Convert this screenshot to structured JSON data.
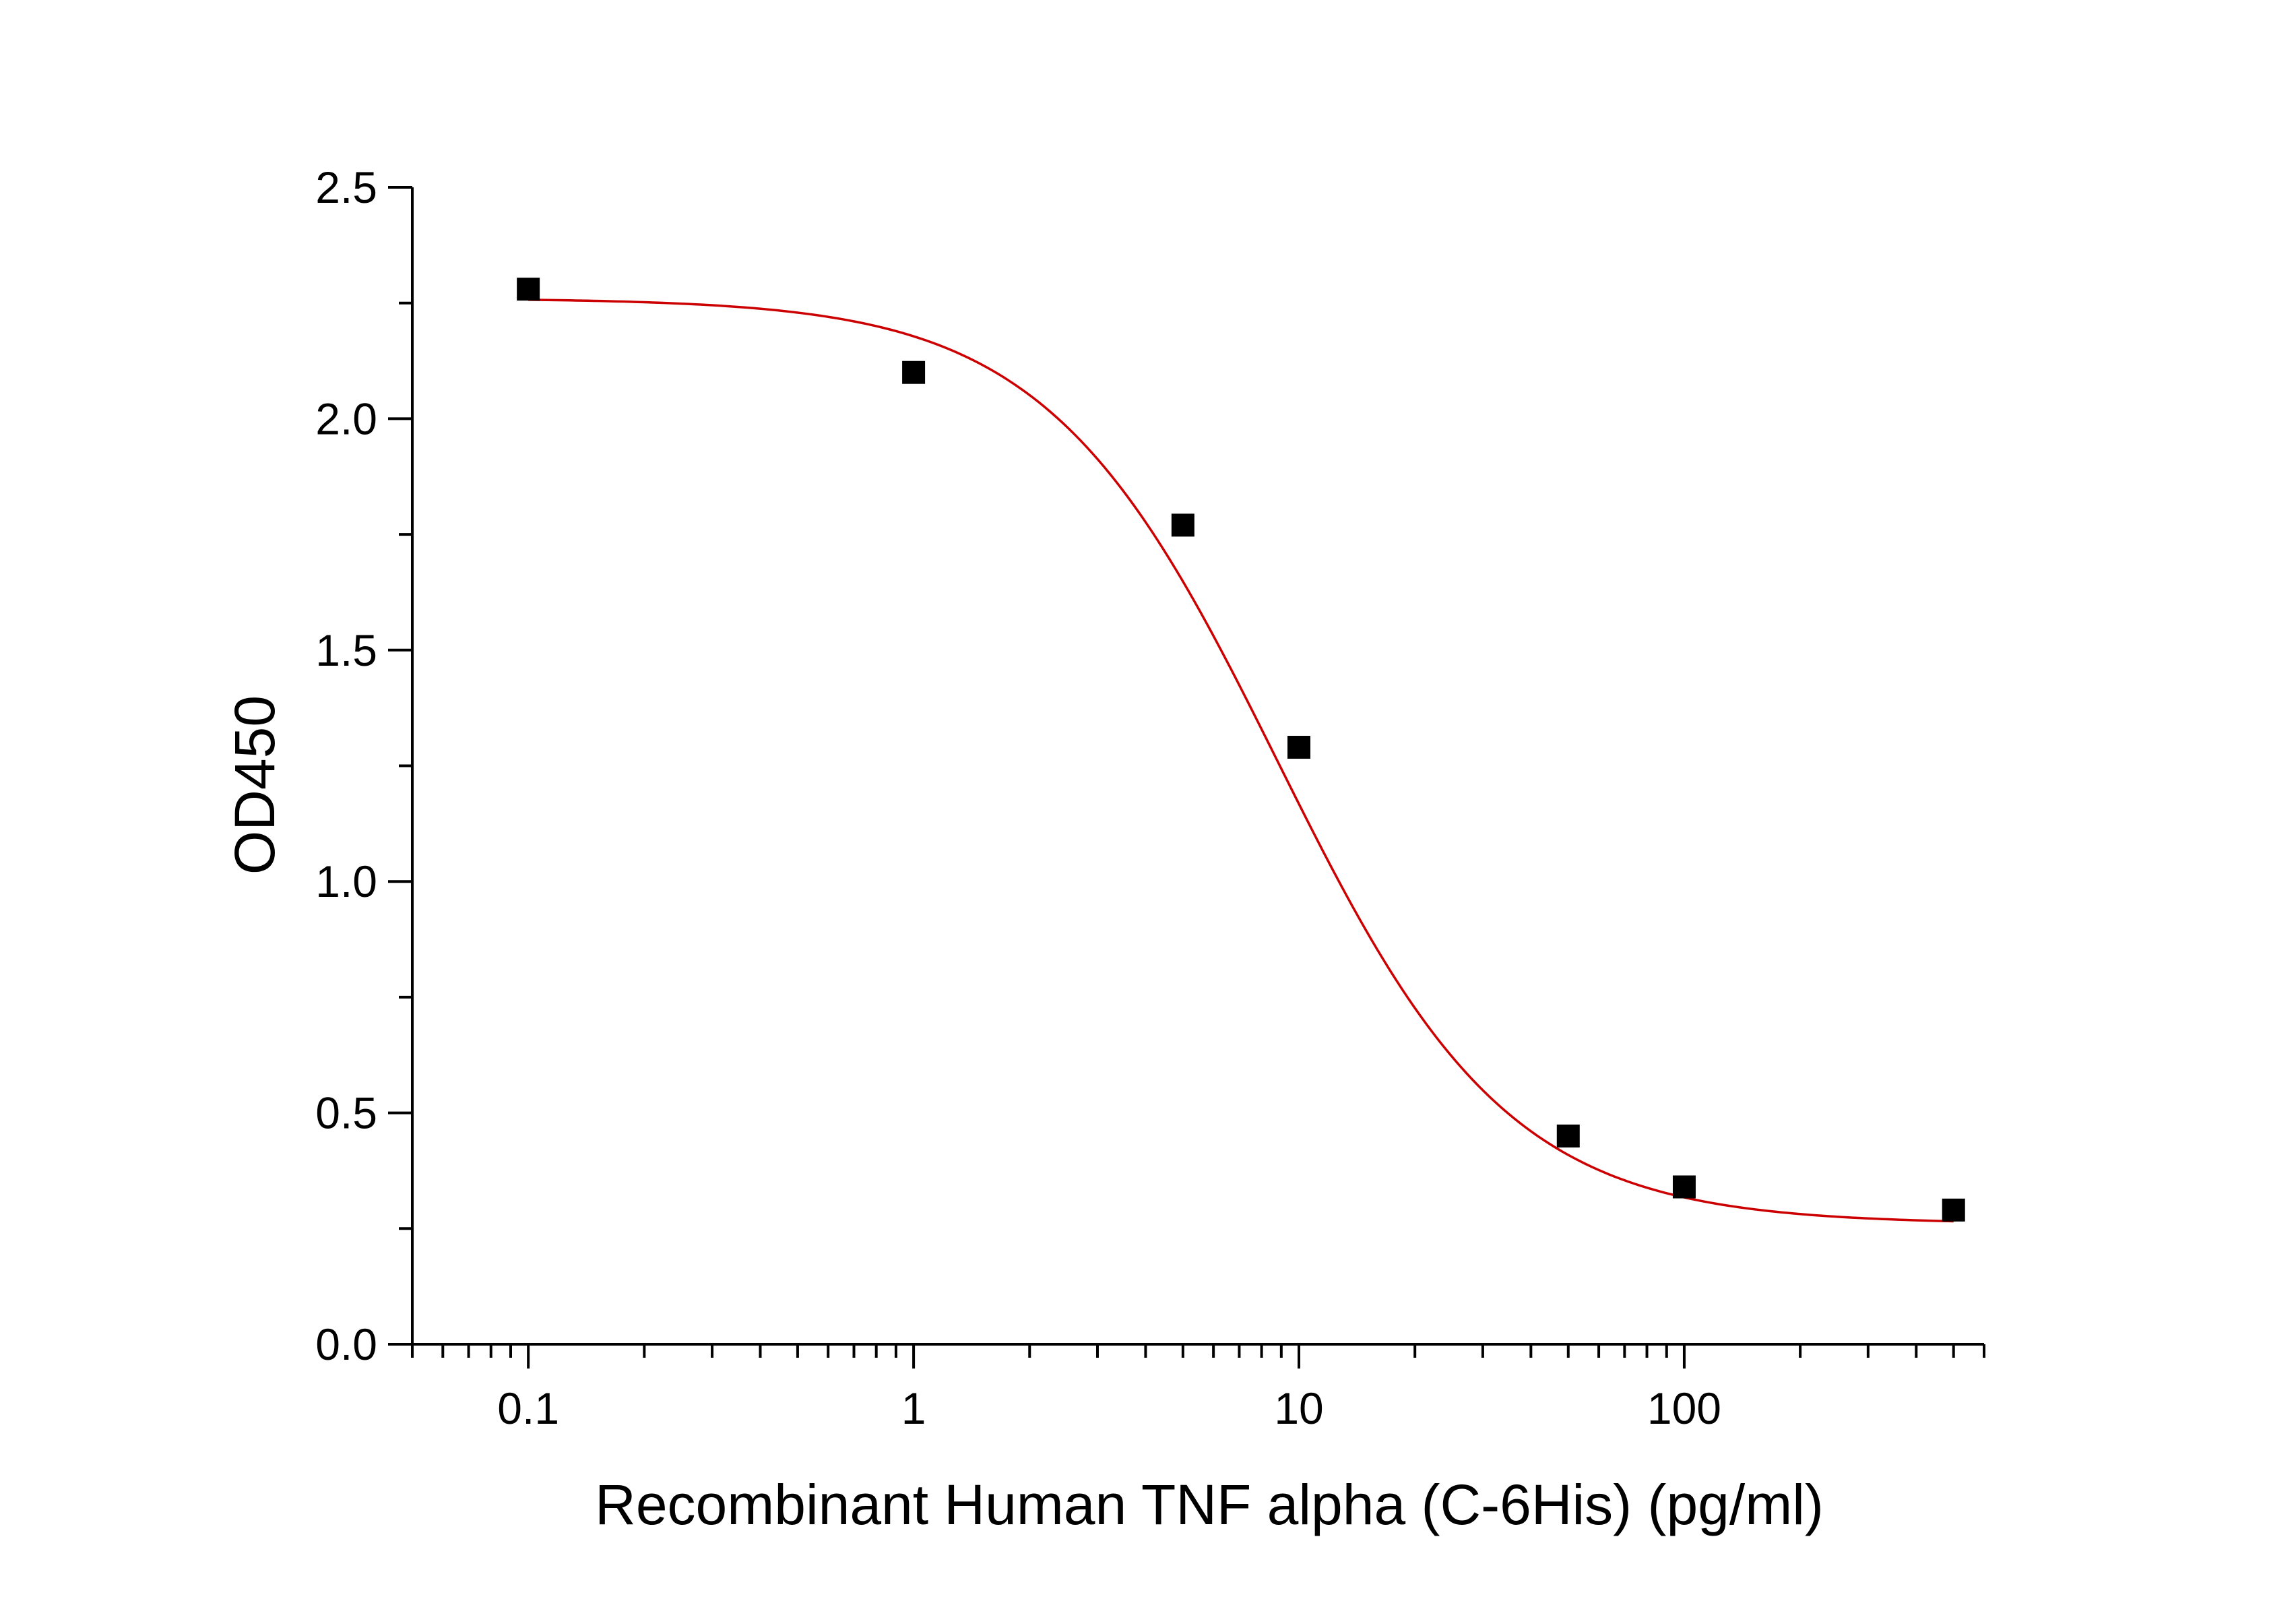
{
  "chart_data": {
    "type": "scatter",
    "xlabel": "Recombinant Human TNF alpha (C-6His) (pg/ml)",
    "ylabel": "OD450",
    "x_scale": "log",
    "xlim": [
      0.05,
      600
    ],
    "ylim": [
      0,
      2.5
    ],
    "x_ticks": [
      {
        "value": 0.1,
        "label": "0.1"
      },
      {
        "value": 1,
        "label": "1"
      },
      {
        "value": 10,
        "label": "10"
      },
      {
        "value": 100,
        "label": "100"
      }
    ],
    "y_ticks": [
      {
        "value": 0,
        "label": "0.0"
      },
      {
        "value": 0.5,
        "label": "0.5"
      },
      {
        "value": 1.0,
        "label": "1.0"
      },
      {
        "value": 1.5,
        "label": "1.5"
      },
      {
        "value": 2.0,
        "label": "2.0"
      },
      {
        "value": 2.5,
        "label": "2.5"
      }
    ],
    "grid": false,
    "series": [
      {
        "kind": "points",
        "color": "#000000",
        "marker": "square",
        "x": [
          0.1,
          1,
          5,
          10,
          50,
          100,
          500
        ],
        "y": [
          2.28,
          2.1,
          1.77,
          1.29,
          0.45,
          0.34,
          0.29
        ]
      },
      {
        "kind": "fit-curve",
        "color": "#cc0000",
        "model": "four-parameter-logistic",
        "params": {
          "top": 2.26,
          "bottom": 0.26,
          "ec50": 8.8,
          "hill": 1.45
        },
        "x_range": [
          0.1,
          500
        ]
      }
    ]
  }
}
